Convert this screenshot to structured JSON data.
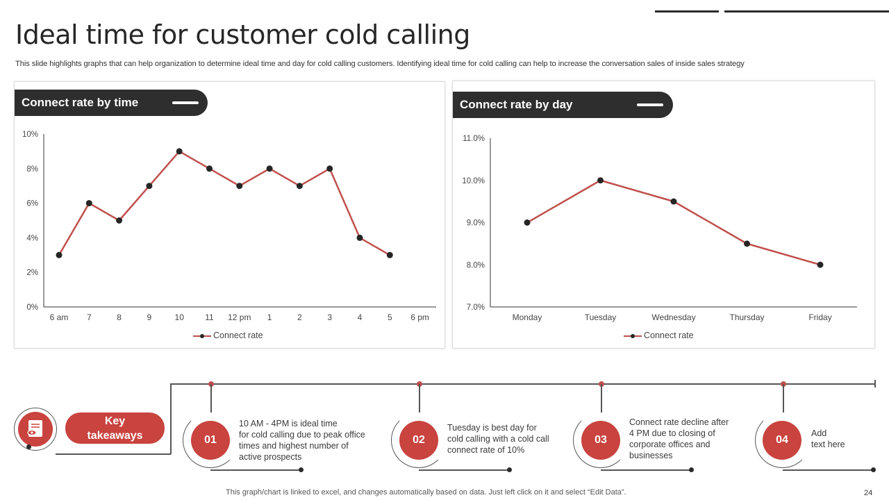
{
  "title": "Ideal time for customer cold calling",
  "subtitle": "This slide highlights graphs that can help organization to determine ideal time and day for  cold calling customers. Identifying ideal time for cold calling can help to increase the conversation sales of inside sales strategy",
  "colors": {
    "accent": "#c9433f",
    "line": "#c0504d",
    "marker": "#262626",
    "header": "#2e2e2e"
  },
  "chart_data": [
    {
      "type": "line",
      "title": "Connect rate by time",
      "categories": [
        "6 am",
        "7",
        "8",
        "9",
        "10",
        "11",
        "12 pm",
        "1",
        "2",
        "3",
        "4",
        "5",
        "6 pm"
      ],
      "series": [
        {
          "name": "Connect rate",
          "values": [
            3,
            6,
            5,
            7,
            9,
            8,
            7,
            8,
            7,
            8,
            4,
            3,
            null
          ]
        }
      ],
      "yticks": [
        "0%",
        "2%",
        "4%",
        "6%",
        "8%",
        "10%"
      ],
      "ylim": [
        0,
        10
      ],
      "legend": "bottom"
    },
    {
      "type": "line",
      "title": "Connect rate by day",
      "categories": [
        "Monday",
        "Tuesday",
        "Wednesday",
        "Thursday",
        "Friday"
      ],
      "series": [
        {
          "name": "Connect rate",
          "values": [
            9.0,
            10.0,
            9.5,
            8.5,
            8.0
          ]
        }
      ],
      "yticks": [
        "7.0%",
        "8.0%",
        "9.0%",
        "10.0%",
        "11.0%"
      ],
      "ylim": [
        7,
        11
      ],
      "legend": "bottom"
    }
  ],
  "key_takeaways": {
    "label": "Key\ntakeaways",
    "icon": "magnifier-document-icon",
    "items": [
      {
        "num": "01",
        "text": "10 AM - 4PM is ideal time\n for cold calling due to peak office\n times and highest number of\n active prospects"
      },
      {
        "num": "02",
        "text": "Tuesday is best day for\ncold calling with a cold call\nconnect rate of 10%"
      },
      {
        "num": "03",
        "text": "Connect rate decline after\n4 PM due to closing of\ncorporate offices and\nbusinesses"
      },
      {
        "num": "04",
        "text": "Add\ntext here"
      }
    ]
  },
  "footer": "This graph/chart is linked to excel,  and changes automatically based on data. Just left click on it and select “Edit Data”.",
  "page_number": "24"
}
